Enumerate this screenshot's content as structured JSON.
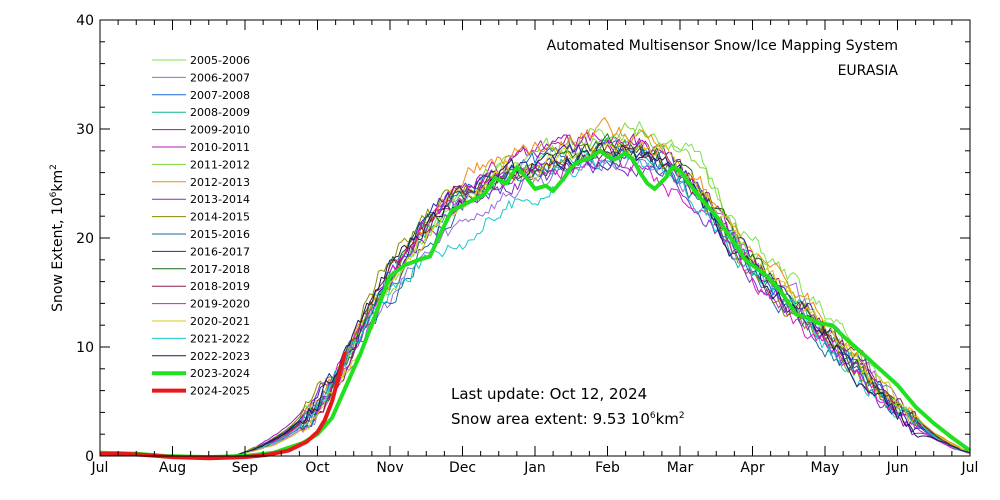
{
  "chart_data": {
    "type": "line",
    "title": "Automated  Multisensor Snow/Ice Mapping System",
    "subtitle": "EURASIA",
    "ylabel": "Snow Extent, 10⁶km²",
    "ylabel_parts": {
      "main": "Snow Extent, 10",
      "sup1": "6",
      "mid": "km",
      "sup2": "2"
    },
    "ylim": [
      0,
      40
    ],
    "yticks": [
      0,
      10,
      20,
      30,
      40
    ],
    "x_months": [
      "Jul",
      "Aug",
      "Sep",
      "Oct",
      "Nov",
      "Dec",
      "Jan",
      "Feb",
      "Mar",
      "Apr",
      "May",
      "Jun",
      "Jul"
    ],
    "legend_placement": "upper-left",
    "info": {
      "last_update": "Last update: Oct 12, 2024",
      "area_label": "Snow area extent:  9.53 10",
      "area_sup1": "6",
      "area_unit": "km",
      "area_sup2": "2"
    },
    "series": [
      {
        "name": "2005-2006",
        "color": "#7ee050",
        "width": 1,
        "offset": [
          0,
          0,
          0,
          0.6,
          -0.3,
          0.4,
          1.2,
          2.3,
          3.2,
          2.0,
          1.5,
          0.5,
          0
        ]
      },
      {
        "name": "2006-2007",
        "color": "#9a6bd8",
        "width": 1,
        "offset": [
          0,
          0,
          0,
          -0.6,
          -1.8,
          -2.0,
          -0.8,
          -0.6,
          -0.3,
          0.8,
          0.6,
          0.3,
          0
        ]
      },
      {
        "name": "2007-2008",
        "color": "#1a6ad8",
        "width": 1,
        "offset": [
          0,
          0,
          0,
          0.2,
          0.6,
          0.6,
          0.8,
          0.6,
          0.5,
          -0.6,
          -0.8,
          -0.2,
          0
        ]
      },
      {
        "name": "2008-2009",
        "color": "#10b890",
        "width": 1,
        "offset": [
          0,
          0,
          0,
          -0.2,
          0.3,
          0.6,
          0.2,
          0.8,
          0.3,
          -0.3,
          0.1,
          0,
          0
        ]
      },
      {
        "name": "2009-2010",
        "color": "#9a18b8",
        "width": 1,
        "offset": [
          0,
          0,
          0,
          1.2,
          0.8,
          1.2,
          1.5,
          1.2,
          0.8,
          0.3,
          -0.5,
          -0.4,
          0
        ]
      },
      {
        "name": "2010-2011",
        "color": "#b818b0",
        "width": 1,
        "offset": [
          0,
          0,
          0,
          -0.4,
          0.2,
          0.8,
          1.6,
          1.8,
          1.2,
          -0.2,
          -0.4,
          -0.2,
          0
        ]
      },
      {
        "name": "2011-2012",
        "color": "#7ed830",
        "width": 1,
        "offset": [
          0,
          0,
          0,
          0.1,
          -0.5,
          0.4,
          1.2,
          2.8,
          2.4,
          1.2,
          0.6,
          0.3,
          0
        ]
      },
      {
        "name": "2012-2013",
        "color": "#f08a10",
        "width": 1,
        "offset": [
          0,
          0,
          0,
          0.2,
          0.4,
          2.0,
          2.6,
          2.4,
          1.2,
          1.6,
          1.0,
          0.6,
          0
        ]
      },
      {
        "name": "2013-2014",
        "color": "#7830c8",
        "width": 1,
        "offset": [
          0,
          0,
          0,
          0.4,
          0.1,
          -0.3,
          -0.8,
          -0.6,
          -1.0,
          -1.2,
          -0.8,
          -0.6,
          0
        ]
      },
      {
        "name": "2014-2015",
        "color": "#8a8a00",
        "width": 1,
        "offset": [
          0,
          0,
          0,
          0.9,
          2.6,
          0.5,
          1.0,
          0.8,
          0.4,
          -0.6,
          -0.7,
          -0.3,
          0
        ]
      },
      {
        "name": "2015-2016",
        "color": "#1e6a9a",
        "width": 1,
        "offset": [
          0,
          0,
          0,
          -0.3,
          -1.2,
          -0.6,
          0.3,
          0.6,
          -0.5,
          -1.4,
          -1.0,
          -0.6,
          0
        ]
      },
      {
        "name": "2016-2017",
        "color": "#2a2aa8",
        "width": 1,
        "offset": [
          0,
          0,
          0,
          0.6,
          0.4,
          1.0,
          0.8,
          0.3,
          0.5,
          0.6,
          0.4,
          0.2,
          0
        ]
      },
      {
        "name": "2017-2018",
        "color": "#1a6a1a",
        "width": 1,
        "offset": [
          0,
          0,
          0,
          0.3,
          0.8,
          0.3,
          0.6,
          0.6,
          0.9,
          0.4,
          0.2,
          0.1,
          0
        ]
      },
      {
        "name": "2018-2019",
        "color": "#8a1a4a",
        "width": 1,
        "offset": [
          0,
          0,
          0,
          0.1,
          0.2,
          0.8,
          0.5,
          0.4,
          0.2,
          0.6,
          0.5,
          0.3,
          0
        ]
      },
      {
        "name": "2019-2020",
        "color": "#d818c8",
        "width": 1,
        "offset": [
          0,
          0,
          0,
          -0.1,
          0.3,
          0.4,
          0.2,
          -0.4,
          -1.6,
          -1.2,
          -1.6,
          -0.8,
          0
        ]
      },
      {
        "name": "2020-2021",
        "color": "#d8c818",
        "width": 1,
        "offset": [
          0,
          0,
          0,
          -0.7,
          -1.0,
          0.2,
          0.5,
          1.3,
          1.0,
          0.6,
          0.2,
          0.2,
          0
        ]
      },
      {
        "name": "2021-2022",
        "color": "#18c8c8",
        "width": 1,
        "offset": [
          0,
          0,
          0,
          -0.2,
          -0.4,
          -3.6,
          -1.8,
          -0.4,
          -0.4,
          -0.4,
          -1.0,
          -0.4,
          0
        ]
      },
      {
        "name": "2022-2023",
        "color": "#1a1a58",
        "width": 1,
        "offset": [
          0,
          0,
          0,
          0.4,
          1.0,
          0.6,
          0.6,
          0.4,
          0.0,
          -0.8,
          -0.4,
          -0.3,
          0
        ]
      },
      {
        "name": "2023-2024",
        "color": "#20e020",
        "width": 4,
        "offset": [
          0,
          0,
          0,
          0,
          0,
          0,
          0,
          0,
          0,
          0,
          0,
          0,
          0
        ],
        "points": [
          [
            0,
            0.3
          ],
          [
            0.5,
            0.2
          ],
          [
            0.9,
            0
          ],
          [
            1.5,
            -0.1
          ],
          [
            2.0,
            0
          ],
          [
            2.4,
            0.3
          ],
          [
            2.8,
            1.2
          ],
          [
            3.0,
            2.0
          ],
          [
            3.2,
            3.5
          ],
          [
            3.4,
            6.5
          ],
          [
            3.6,
            9.5
          ],
          [
            3.8,
            13.0
          ],
          [
            4.0,
            16.5
          ],
          [
            4.2,
            17.5
          ],
          [
            4.4,
            18.0
          ],
          [
            4.55,
            18.3
          ],
          [
            4.7,
            20.5
          ],
          [
            4.85,
            22.5
          ],
          [
            5.0,
            23.0
          ],
          [
            5.15,
            23.5
          ],
          [
            5.3,
            24.0
          ],
          [
            5.45,
            25.5
          ],
          [
            5.6,
            25.0
          ],
          [
            5.75,
            26.5
          ],
          [
            5.85,
            25.8
          ],
          [
            6.0,
            24.5
          ],
          [
            6.15,
            24.8
          ],
          [
            6.25,
            24.3
          ],
          [
            6.4,
            25.5
          ],
          [
            6.5,
            26.5
          ],
          [
            6.6,
            27.0
          ],
          [
            6.75,
            27.3
          ],
          [
            6.9,
            28.0
          ],
          [
            7.0,
            27.5
          ],
          [
            7.1,
            27.2
          ],
          [
            7.25,
            27.8
          ],
          [
            7.35,
            27.2
          ],
          [
            7.45,
            26.0
          ],
          [
            7.55,
            25.0
          ],
          [
            7.65,
            24.5
          ],
          [
            7.8,
            25.5
          ],
          [
            7.9,
            26.5
          ],
          [
            8.0,
            26.2
          ],
          [
            8.15,
            24.8
          ],
          [
            8.3,
            23.5
          ],
          [
            8.5,
            22.0
          ],
          [
            8.7,
            20.0
          ],
          [
            8.9,
            18.0
          ],
          [
            9.0,
            17.5
          ],
          [
            9.2,
            16.5
          ],
          [
            9.4,
            15.0
          ],
          [
            9.5,
            14.0
          ],
          [
            9.6,
            13.0
          ],
          [
            9.75,
            12.7
          ],
          [
            9.9,
            12.2
          ],
          [
            10.1,
            12.0
          ],
          [
            10.25,
            11.0
          ],
          [
            10.5,
            9.5
          ],
          [
            10.75,
            8.0
          ],
          [
            11.0,
            6.5
          ],
          [
            11.25,
            4.5
          ],
          [
            11.5,
            3.0
          ],
          [
            11.75,
            1.7
          ],
          [
            12.0,
            0.5
          ]
        ]
      },
      {
        "name": "2024-2025",
        "color": "#e81818",
        "width": 4,
        "offset": [],
        "points": [
          [
            0,
            0.2
          ],
          [
            0.3,
            0.2
          ],
          [
            0.6,
            0.1
          ],
          [
            1.0,
            -0.1
          ],
          [
            1.5,
            -0.2
          ],
          [
            2.0,
            -0.1
          ],
          [
            2.3,
            0.1
          ],
          [
            2.6,
            0.5
          ],
          [
            2.85,
            1.3
          ],
          [
            3.0,
            2.2
          ],
          [
            3.1,
            3.3
          ],
          [
            3.2,
            5.0
          ],
          [
            3.3,
            7.5
          ],
          [
            3.38,
            9.53
          ]
        ]
      }
    ]
  }
}
